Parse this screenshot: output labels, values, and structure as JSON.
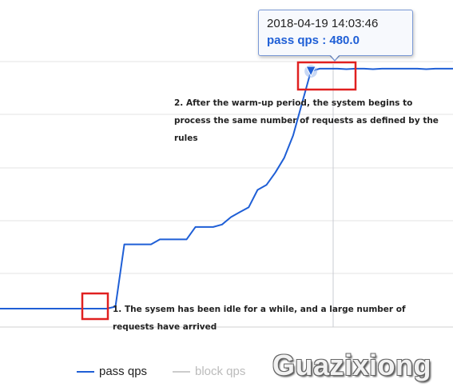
{
  "chart_data": {
    "type": "line",
    "title": "",
    "xlabel": "",
    "ylabel": "",
    "ylim": [
      0,
      480
    ],
    "grid": true,
    "highlight_index": 35,
    "series": [
      {
        "name": "pass qps",
        "color": "#1f5fd6",
        "visible": true,
        "values": [
          0,
          0,
          0,
          0,
          0,
          0,
          0,
          0,
          0,
          0,
          0,
          0,
          0,
          4,
          130,
          130,
          130,
          130,
          140,
          140,
          140,
          140,
          165,
          165,
          165,
          170,
          185,
          195,
          205,
          240,
          250,
          275,
          305,
          350,
          415,
          480,
          485,
          485,
          485,
          484,
          485,
          485,
          484,
          485,
          485,
          485,
          485,
          485,
          484,
          485,
          485,
          485
        ]
      },
      {
        "name": "block qps",
        "color": "#cccccc",
        "visible": false,
        "values": []
      }
    ],
    "tooltip": {
      "timestamp": "2018-04-19 14:03:46",
      "label": "pass qps",
      "separator": " : ",
      "value": "480.0"
    },
    "annotations": [
      {
        "id": "warmup",
        "text": "2. After the warm-up period, the system begins to process the same number of requests as defined by the rules"
      },
      {
        "id": "idle",
        "text": "1. The sysem has been idle for a while, and a large number of requests have arrived"
      }
    ]
  },
  "watermark": "Guazixiong"
}
